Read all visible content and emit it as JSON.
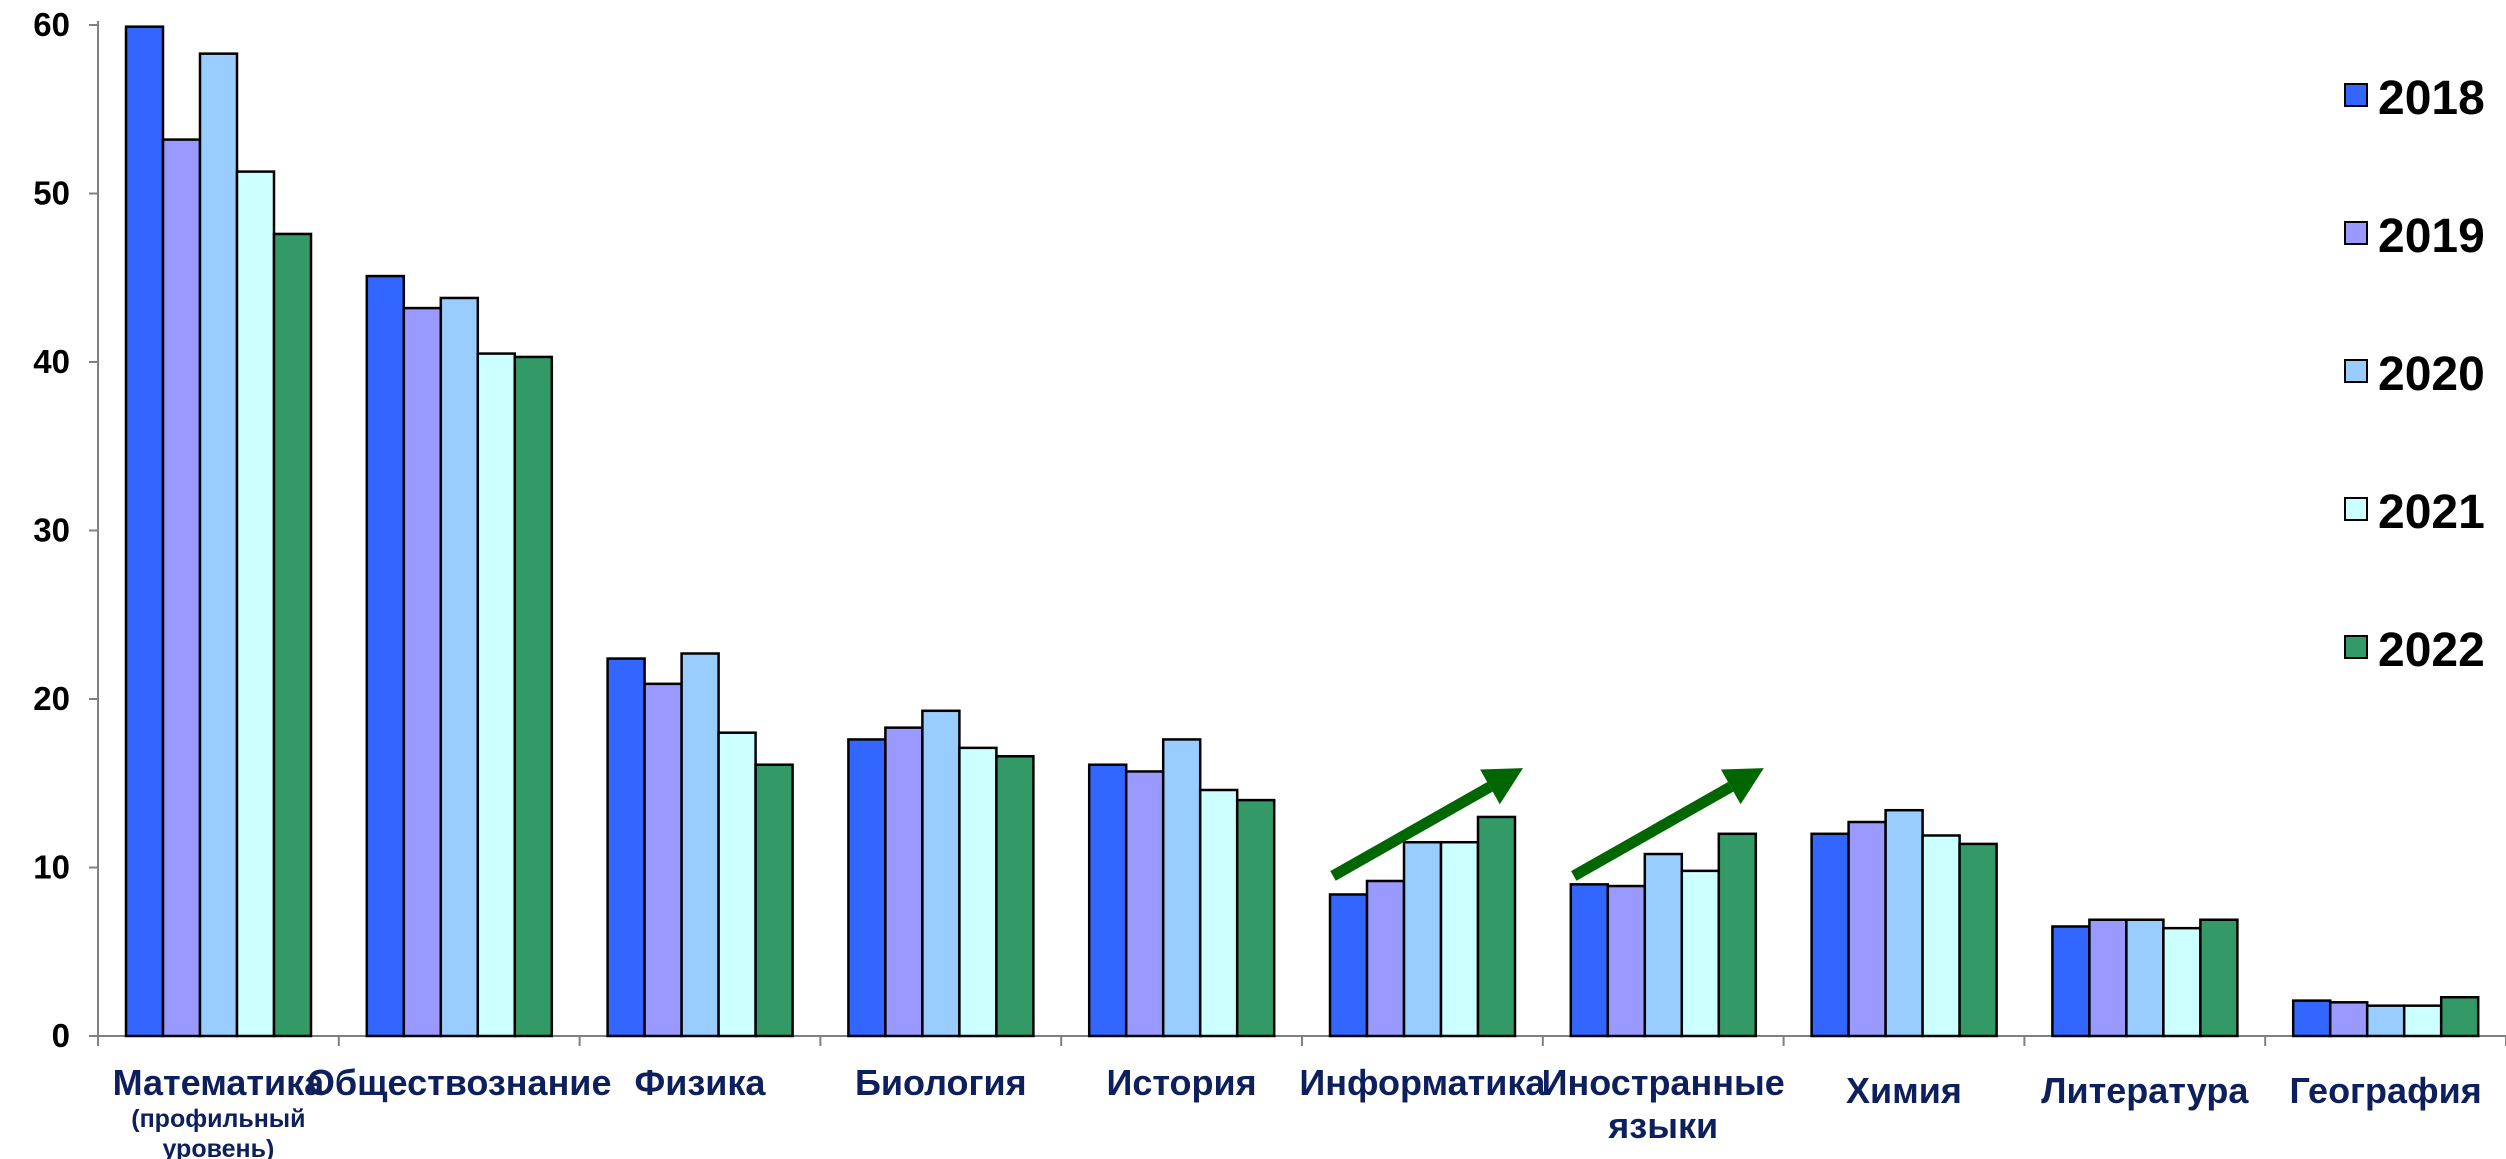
{
  "chart_data": {
    "type": "bar",
    "categories": [
      [
        "Математика",
        "(профильный",
        "уровень)"
      ],
      [
        "Обществознание"
      ],
      [
        "Физика"
      ],
      [
        "Биология"
      ],
      [
        "История"
      ],
      [
        "Информатика"
      ],
      [
        "Иностранные",
        "языки"
      ],
      [
        "Химия"
      ],
      [
        "Литература"
      ],
      [
        "География"
      ]
    ],
    "series": [
      {
        "name": "2018",
        "color": "#3366ff",
        "values": [
          59.9,
          45.1,
          22.4,
          17.6,
          16.1,
          8.4,
          9.0,
          12.0,
          6.5,
          2.1
        ]
      },
      {
        "name": "2019",
        "color": "#9999ff",
        "values": [
          53.2,
          43.2,
          20.9,
          18.3,
          15.7,
          9.2,
          8.9,
          12.7,
          6.9,
          2.0
        ]
      },
      {
        "name": "2020",
        "color": "#99ccff",
        "values": [
          58.3,
          43.8,
          22.7,
          19.3,
          17.6,
          11.5,
          10.8,
          13.4,
          6.9,
          1.8
        ]
      },
      {
        "name": "2021",
        "color": "#ccffff",
        "values": [
          51.3,
          40.5,
          18.0,
          17.1,
          14.6,
          11.5,
          9.8,
          11.9,
          6.4,
          1.8
        ]
      },
      {
        "name": "2022",
        "color": "#339966",
        "values": [
          47.6,
          40.3,
          16.1,
          16.6,
          14.0,
          13.0,
          12.0,
          11.4,
          6.9,
          2.3
        ]
      }
    ],
    "ylim": [
      0,
      60
    ],
    "yticks": [
      "0",
      "10",
      "20",
      "30",
      "40",
      "50",
      "60"
    ],
    "legend_position": "right",
    "annotations": [
      {
        "type": "arrow",
        "color": "#006600",
        "from_category": "Информатика"
      },
      {
        "type": "arrow",
        "color": "#006600",
        "from_category": "Иностранные языки"
      }
    ]
  }
}
